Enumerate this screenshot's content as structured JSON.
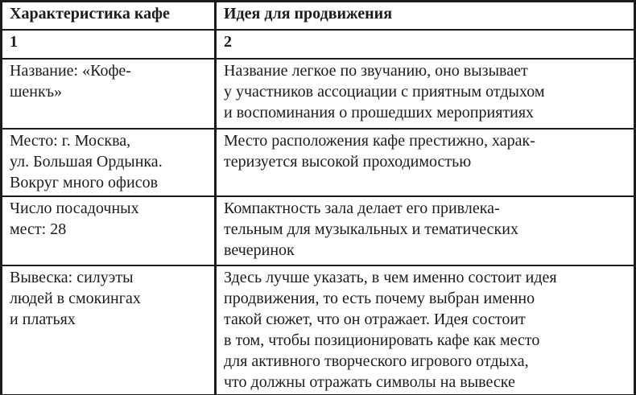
{
  "document": {
    "type": "table",
    "language": "ru"
  },
  "table": {
    "header": {
      "characteristic": "Характеристика кафе",
      "idea": "Идея для продвижения"
    },
    "column_numbers": [
      "1",
      "2"
    ],
    "rows": [
      {
        "characteristic": "Название: «Кофе-\nшенкъ»",
        "idea": "Название легкое по звучанию, оно вызывает\nу участников ассоциации с приятным отдыхом\nи воспоминания о прошедших мероприятиях"
      },
      {
        "characteristic": "Место: г. Москва,\nул. Большая Ордынка.\nВокруг много офисов",
        "idea": "Место расположения кафе престижно, харак-\nтеризуется высокой проходимостью"
      },
      {
        "characteristic": "Число посадочных\nмест: 28",
        "idea": "Компактность зала делает его привлека-\nтельным для музыкальных и тематических\nвечеринок"
      },
      {
        "characteristic": "Вывеска: силуэты\nлюдей в смокингах\nи платьях",
        "idea": "Здесь лучше указать, в чем именно состоит идея\nпродвижения, то есть почему выбран именно\nтакой сюжет, что он отражает. Идея состоит\nв том, чтобы позиционировать кафе как место\nдля активного творческого игрового отдыха,\nчто должны отражать символы на вывеске"
      }
    ]
  },
  "colors": {
    "text": "#1c1c1c",
    "border": "#1c1c1c",
    "background": "#ffffff"
  }
}
